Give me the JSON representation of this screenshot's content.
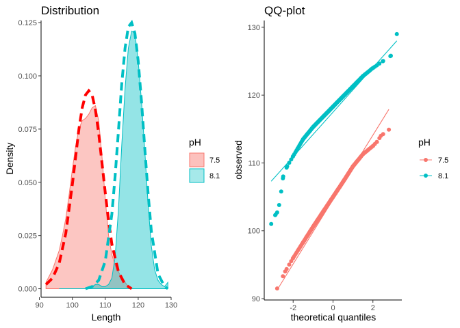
{
  "chart_data": [
    {
      "type": "area",
      "title": "Distribution",
      "xlabel": "Length",
      "ylabel": "Density",
      "xlim": [
        90.5,
        130
      ],
      "ylim": [
        -0.004,
        0.126
      ],
      "x_ticks": [
        90,
        100,
        110,
        120,
        130
      ],
      "y_ticks": [
        0.0,
        0.025,
        0.05,
        0.075,
        0.1,
        0.125
      ],
      "x_tick_labels": [
        "90",
        "100",
        "110",
        "120",
        "130"
      ],
      "y_tick_labels": [
        "0.000",
        "0.025",
        "0.050",
        "0.075",
        "0.100",
        "0.125"
      ],
      "grid": false,
      "legend": {
        "title": "pH",
        "position": "right",
        "entries": [
          "7.5",
          "8.1"
        ]
      },
      "series": [
        {
          "name": "7.5",
          "color": "#F8766D",
          "fill": "#F8766D",
          "x": [
            92,
            94,
            96,
            97,
            98,
            99,
            100,
            101,
            102,
            103,
            104,
            105,
            106,
            107,
            108,
            109,
            110,
            111,
            112,
            113,
            114,
            115,
            116,
            117,
            118
          ],
          "y": [
            0.003,
            0.009,
            0.018,
            0.025,
            0.033,
            0.044,
            0.056,
            0.067,
            0.075,
            0.079,
            0.08,
            0.082,
            0.085,
            0.086,
            0.079,
            0.062,
            0.042,
            0.025,
            0.016,
            0.011,
            0.008,
            0.005,
            0.003,
            0.001,
            0.0
          ]
        },
        {
          "name": "8.1",
          "color": "#00BFC4",
          "fill": "#00BFC4",
          "x": [
            96,
            100,
            104,
            106,
            107,
            108,
            109,
            110,
            111,
            112,
            113,
            114,
            115,
            116,
            117,
            118,
            119,
            120,
            121,
            122,
            123,
            124,
            125,
            126,
            127,
            128,
            129
          ],
          "y": [
            0.0,
            0.0,
            0.0,
            0.001,
            0.002,
            0.002,
            0.001,
            0.001,
            0.002,
            0.005,
            0.015,
            0.037,
            0.067,
            0.094,
            0.113,
            0.121,
            0.12,
            0.107,
            0.088,
            0.065,
            0.04,
            0.02,
            0.009,
            0.004,
            0.002,
            0.001,
            0.003
          ]
        }
      ],
      "normal_fits": [
        {
          "color": "#FF0000",
          "x": [
            92,
            94,
            96,
            98,
            100,
            101,
            102,
            103,
            104,
            105,
            106,
            107,
            108,
            109,
            110,
            111,
            112,
            114,
            116,
            118
          ],
          "y": [
            0.002,
            0.005,
            0.012,
            0.026,
            0.049,
            0.062,
            0.075,
            0.085,
            0.091,
            0.093,
            0.091,
            0.084,
            0.073,
            0.059,
            0.045,
            0.032,
            0.021,
            0.008,
            0.002,
            0.0
          ]
        },
        {
          "color": "#00BFC4",
          "x": [
            104,
            106,
            108,
            110,
            112,
            113,
            114,
            115,
            116,
            117,
            118,
            119,
            120,
            121,
            122,
            123,
            124,
            126,
            128,
            129
          ],
          "y": [
            0.0,
            0.001,
            0.004,
            0.013,
            0.035,
            0.053,
            0.074,
            0.096,
            0.113,
            0.123,
            0.125,
            0.12,
            0.107,
            0.088,
            0.066,
            0.045,
            0.027,
            0.007,
            0.001,
            0.0
          ]
        }
      ]
    },
    {
      "type": "scatter",
      "title": "QQ-plot",
      "xlabel": "theoretical quantiles",
      "ylabel": "observed",
      "xlim": [
        -3.45,
        3.45
      ],
      "ylim": [
        89.8,
        131.0
      ],
      "x_ticks": [
        -2,
        0,
        2
      ],
      "y_ticks": [
        90,
        100,
        110,
        120,
        130
      ],
      "x_tick_labels": [
        "-2",
        "0",
        "2"
      ],
      "y_tick_labels": [
        "90",
        "100",
        "110",
        "120",
        "130"
      ],
      "grid": false,
      "legend": {
        "title": "pH",
        "position": "right",
        "entries": [
          "7.5",
          "8.1"
        ]
      },
      "series": [
        {
          "name": "7.5",
          "color": "#F8766D",
          "n": 250,
          "quantiles": [
            [
              -2.8,
              91.5
            ],
            [
              -2.4,
              94.0
            ],
            [
              -2.0,
              96.0
            ],
            [
              -1.5,
              98.3
            ],
            [
              -1.0,
              100.6
            ],
            [
              -0.5,
              102.8
            ],
            [
              0.0,
              105.0
            ],
            [
              0.5,
              107.2
            ],
            [
              1.0,
              109.5
            ],
            [
              1.5,
              111.3
            ],
            [
              2.0,
              112.5
            ],
            [
              2.2,
              113.1
            ],
            [
              2.4,
              114.0
            ],
            [
              2.8,
              114.9
            ]
          ],
          "fit_line": [
            [
              -2.8,
              91.3
            ],
            [
              2.8,
              117.9
            ]
          ]
        },
        {
          "name": "8.1",
          "color": "#00BFC4",
          "n": 250,
          "quantiles": [
            [
              -3.1,
              101.0
            ],
            [
              -2.9,
              102.3
            ],
            [
              -2.8,
              102.7
            ],
            [
              -2.7,
              103.8
            ],
            [
              -2.6,
              105.8
            ],
            [
              -2.5,
              108.0
            ],
            [
              -2.3,
              109.5
            ],
            [
              -2.0,
              111.0
            ],
            [
              -1.5,
              113.5
            ],
            [
              -1.0,
              115.3
            ],
            [
              -0.5,
              116.8
            ],
            [
              0.0,
              118.3
            ],
            [
              0.5,
              119.8
            ],
            [
              1.0,
              121.3
            ],
            [
              1.5,
              122.8
            ],
            [
              2.0,
              124.0
            ],
            [
              2.5,
              125.0
            ],
            [
              2.9,
              125.8
            ],
            [
              3.2,
              129.0
            ]
          ],
          "fit_line": [
            [
              -3.1,
              107.3
            ],
            [
              3.2,
              128.0
            ]
          ]
        }
      ]
    }
  ]
}
